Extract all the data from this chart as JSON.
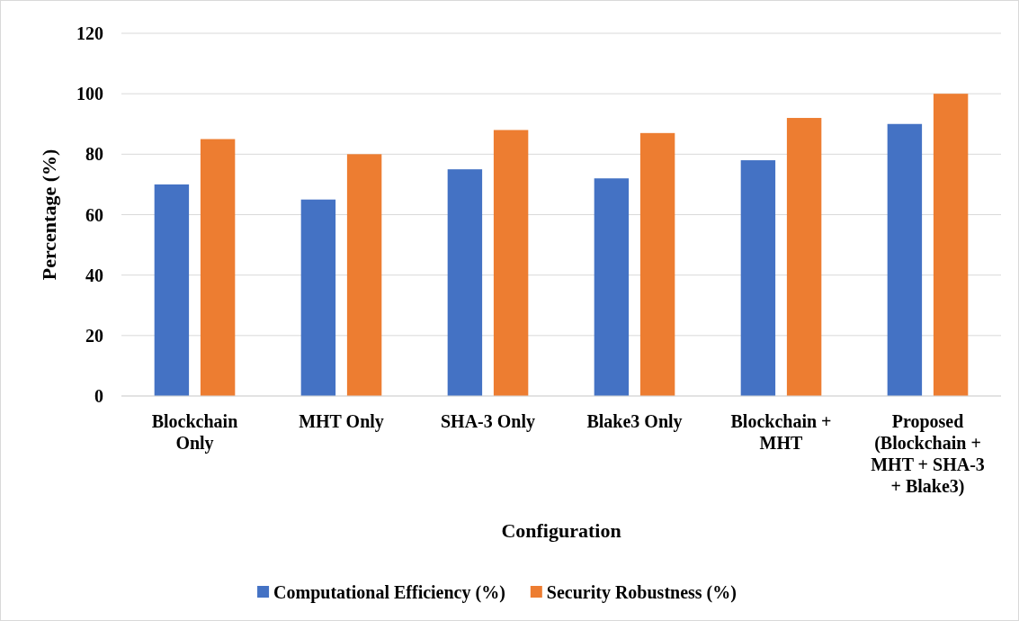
{
  "chart_data": {
    "type": "bar",
    "xlabel": "Configuration",
    "ylabel": "Percentage (%)",
    "categories": [
      "Blockchain Only",
      "MHT Only",
      "SHA-3 Only",
      "Blake3 Only",
      "Blockchain + MHT",
      "Proposed (Blockchain + MHT + SHA-3 + Blake3)"
    ],
    "series": [
      {
        "name": "Computational Efficiency (%)",
        "color": "#4472c4",
        "values": [
          70,
          65,
          75,
          72,
          78,
          90
        ]
      },
      {
        "name": "Security Robustness (%)",
        "color": "#ed7d31",
        "values": [
          85,
          80,
          88,
          87,
          92,
          100
        ]
      }
    ],
    "ylim": [
      0,
      120
    ],
    "yticks": [
      0,
      20,
      40,
      60,
      80,
      100,
      120
    ],
    "grid": "y",
    "legend": "bottom"
  }
}
